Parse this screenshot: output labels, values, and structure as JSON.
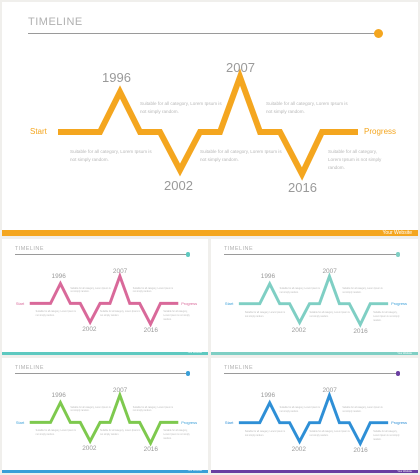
{
  "slides": [
    {
      "title": "TIMELINE",
      "years": [
        "1996",
        "2007",
        "2002",
        "2016"
      ],
      "start_label": "Start",
      "progress_label": "Progress",
      "descriptions": [
        [
          "Suitable for all category, Lorem Ipsum is",
          "not simply random."
        ],
        [
          "Suitable for all category, Lorem Ipsum is",
          "not simply random."
        ],
        [
          "Suitable for all category, Lorem Ipsum is",
          "not simply random."
        ],
        [
          "Suitable for all category, Lorem Ipsum is",
          "not simply random."
        ],
        [
          "Suitable for all category,",
          "Lorem Ipsum is not simply",
          "random."
        ]
      ],
      "footer_text": "Your Website",
      "colors": {
        "line": "#f4a61f",
        "dot": "#f4a61f",
        "start": "#f4a61f",
        "progress": "#f4a61f",
        "footer": "#f4a61f"
      }
    },
    {
      "title": "TIMELINE",
      "years": [
        "1996",
        "2007",
        "2002",
        "2016"
      ],
      "start_label": "Start",
      "progress_label": "Progress",
      "descriptions": [
        [
          "Suitable for all category, Lorem Ipsum is",
          "not simply random."
        ],
        [
          "Suitable for all category, Lorem Ipsum is",
          "not simply random."
        ],
        [
          "Suitable for all category, Lorem Ipsum is",
          "not simply random."
        ],
        [
          "Suitable for all category, Lorem Ipsum is",
          "not simply random."
        ],
        [
          "Suitable for all category,",
          "Lorem Ipsum is not simply",
          "random."
        ]
      ],
      "footer_text": "Your Website",
      "colors": {
        "line": "#d9699a",
        "dot": "#5ec9c0",
        "start": "#d9699a",
        "progress": "#d9699a",
        "footer": "#5ec9c0"
      }
    },
    {
      "title": "TIMELINE",
      "years": [
        "1996",
        "2007",
        "2002",
        "2016"
      ],
      "start_label": "Start",
      "progress_label": "Progress",
      "descriptions": [
        [
          "Suitable for all category, Lorem Ipsum is",
          "not simply random."
        ],
        [
          "Suitable for all category, Lorem Ipsum is",
          "not simply random."
        ],
        [
          "Suitable for all category, Lorem Ipsum is",
          "not simply random."
        ],
        [
          "Suitable for all category, Lorem Ipsum is",
          "not simply random."
        ],
        [
          "Suitable for all category,",
          "Lorem Ipsum is not simply",
          "random."
        ]
      ],
      "footer_text": "Your Website",
      "colors": {
        "line": "#7fcfc4",
        "dot": "#7fcfc4",
        "start": "#3a9fd8",
        "progress": "#3a9fd8",
        "footer": "#7fcfc4"
      }
    },
    {
      "title": "TIMELINE",
      "years": [
        "1996",
        "2007",
        "2002",
        "2016"
      ],
      "start_label": "Start",
      "progress_label": "Progress",
      "descriptions": [
        [
          "Suitable for all category, Lorem Ipsum is",
          "not simply random."
        ],
        [
          "Suitable for all category, Lorem Ipsum is",
          "not simply random."
        ],
        [
          "Suitable for all category, Lorem Ipsum is",
          "not simply random."
        ],
        [
          "Suitable for all category, Lorem Ipsum is",
          "not simply random."
        ],
        [
          "Suitable for all category,",
          "Lorem Ipsum is not simply",
          "random."
        ]
      ],
      "footer_text": "Your Website",
      "colors": {
        "line": "#7ec94e",
        "dot": "#3a9fd8",
        "start": "#3a9fd8",
        "progress": "#3a9fd8",
        "footer": "#3a9fd8"
      }
    },
    {
      "title": "TIMELINE",
      "years": [
        "1996",
        "2007",
        "2002",
        "2016"
      ],
      "start_label": "Start",
      "progress_label": "Progress",
      "descriptions": [
        [
          "Suitable for all category, Lorem Ipsum is",
          "not simply random."
        ],
        [
          "Suitable for all category, Lorem Ipsum is",
          "not simply random."
        ],
        [
          "Suitable for all category, Lorem Ipsum is",
          "not simply random."
        ],
        [
          "Suitable for all category, Lorem Ipsum is",
          "not simply random."
        ],
        [
          "Suitable for all category,",
          "Lorem Ipsum is not simply",
          "random."
        ]
      ],
      "footer_text": "Your Website",
      "colors": {
        "line": "#2e8fd6",
        "dot": "#6a3ea1",
        "start": "#2e8fd6",
        "progress": "#2e8fd6",
        "footer": "#6a3ea1"
      }
    }
  ]
}
